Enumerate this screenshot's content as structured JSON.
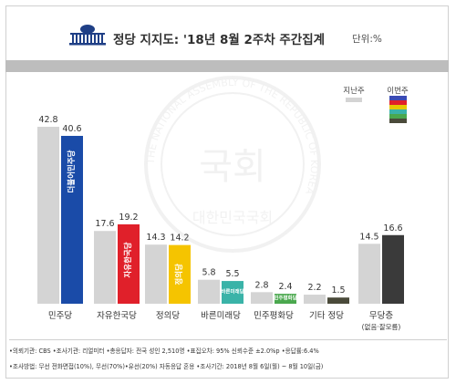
{
  "header": {
    "title": "정당 지지도: '18년 8월 2주차 주간집계",
    "unit": "단위:%"
  },
  "legend": {
    "previous_label": "지난주",
    "current_label": "이번주"
  },
  "colors": {
    "previous": "#d4d4d4",
    "parties": [
      "#1a4ba8",
      "#e0202a",
      "#f5c400",
      "#3ab3a8",
      "#4aa84e",
      "#4a4a3a",
      "#3a3a3a"
    ]
  },
  "chart_data": {
    "type": "bar",
    "categories": [
      "민주당",
      "자유한국당",
      "정의당",
      "바른미래당",
      "민주평화당",
      "기타 정당",
      "무당층"
    ],
    "category_sublabels": [
      "",
      "",
      "",
      "",
      "",
      "",
      "(없음·잘모름)"
    ],
    "series": [
      {
        "name": "지난주",
        "values": [
          42.8,
          17.6,
          14.3,
          5.8,
          2.8,
          2.2,
          14.5
        ]
      },
      {
        "name": "이번주",
        "values": [
          40.6,
          19.2,
          14.2,
          5.5,
          2.4,
          1.5,
          16.6
        ]
      }
    ],
    "value_labels_previous": [
      "42.8",
      "17.6",
      "14.3",
      "5.8",
      "2.8",
      "2.2",
      "14.5"
    ],
    "value_labels_current": [
      "40.6",
      "19.2",
      "14.2",
      "5.5",
      "2.4",
      "1.5",
      "16.6"
    ],
    "bar_labels": [
      "더불어민주당",
      "자유한국당",
      "정의당",
      "바른미래당",
      "민주평화당",
      "",
      ""
    ],
    "ylim": [
      0,
      45
    ],
    "legend_position": "top-right",
    "grid": false
  },
  "footnotes": [
    "•의뢰기관: CBS •조사기관: 리얼미터 •총응답자: 전국 성인 2,510명 •표집오차: 95% 신뢰수준 ±2.0%p •응답률:6.4%",
    "•조사방법: 무선 전화면접(10%), 무선(70%)•유선(20%) 자동응답 혼용 •조사기간: 2018년 8월 6일(월) ~ 8월 10일(금)"
  ],
  "watermark": {
    "ring_text": "THE NATIONAL ASSEMBLY OF THE REPUBLIC OF KOREA",
    "center_text": "국회",
    "bottom_text": "대한민국국회"
  }
}
